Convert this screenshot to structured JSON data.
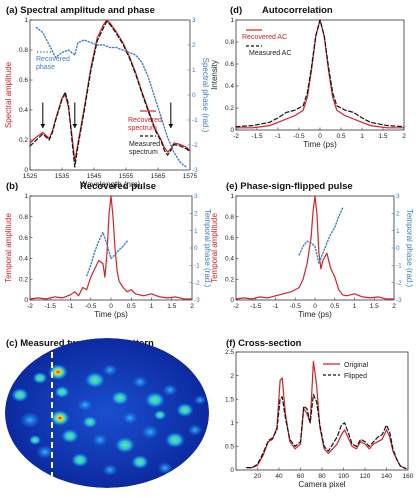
{
  "colors": {
    "red": "#d2232a",
    "blue": "#3f7fc4",
    "black": "#111111",
    "axis": "#333333"
  },
  "chart_data": [
    {
      "panel": "a",
      "type": "line",
      "title": "(a) Spectral amplitude and phase",
      "xlabel": "Wavelength (nm)",
      "ylabel": "Spectral amplitude",
      "ylabel_right": "Spectral phase (rad.)",
      "xlim": [
        1525,
        1575
      ],
      "ylim": [
        0,
        1
      ],
      "ylim_right": [
        -3,
        3
      ],
      "xticks": [
        "1525",
        "1535",
        "1545",
        "1555",
        "1565",
        "1575"
      ],
      "yticks": [
        "0",
        "0.2",
        "0.4",
        "0.6",
        "0.8",
        "1"
      ],
      "yticks_right": [
        "-3",
        "-2",
        "-1",
        "0",
        "1",
        "2",
        "3"
      ],
      "series": [
        {
          "name": "Recovered spectrum",
          "axis": "left",
          "color": "#d2232a",
          "style": "solid",
          "x": [
            1525,
            1527,
            1529,
            1531,
            1532,
            1533,
            1535,
            1536,
            1537,
            1538,
            1539,
            1540,
            1542,
            1544,
            1546,
            1548,
            1549,
            1550,
            1552,
            1554,
            1556,
            1558,
            1560,
            1562,
            1564,
            1566,
            1567,
            1568,
            1569,
            1570,
            1572,
            1574,
            1575
          ],
          "y": [
            0.18,
            0.22,
            0.25,
            0.21,
            0.26,
            0.34,
            0.48,
            0.5,
            0.42,
            0.25,
            0.06,
            0.18,
            0.42,
            0.68,
            0.88,
            0.97,
            1.0,
            0.98,
            0.92,
            0.85,
            0.76,
            0.65,
            0.52,
            0.4,
            0.28,
            0.2,
            0.15,
            0.12,
            0.14,
            0.18,
            0.17,
            0.15,
            0.13
          ]
        },
        {
          "name": "Measured spectrum",
          "axis": "left",
          "color": "#111111",
          "style": "dash",
          "x": [
            1525,
            1527,
            1529,
            1531,
            1532,
            1533,
            1535,
            1536,
            1537,
            1538,
            1539,
            1540,
            1542,
            1544,
            1546,
            1548,
            1549,
            1550,
            1552,
            1554,
            1556,
            1558,
            1560,
            1562,
            1564,
            1566,
            1567,
            1568,
            1569,
            1570,
            1572,
            1574,
            1575
          ],
          "y": [
            0.16,
            0.2,
            0.24,
            0.2,
            0.25,
            0.33,
            0.47,
            0.52,
            0.44,
            0.22,
            0.02,
            0.16,
            0.4,
            0.66,
            0.86,
            0.95,
            0.99,
            0.97,
            0.91,
            0.84,
            0.75,
            0.64,
            0.51,
            0.39,
            0.27,
            0.19,
            0.13,
            0.1,
            0.13,
            0.17,
            0.16,
            0.14,
            0.12
          ]
        },
        {
          "name": "Recovered phase",
          "axis": "right",
          "color": "#3f7fc4",
          "style": "dot",
          "x": [
            1527,
            1529,
            1531,
            1533,
            1535,
            1537,
            1539,
            1540,
            1542,
            1544,
            1546,
            1548,
            1550,
            1552,
            1554,
            1556,
            1558,
            1560,
            1562,
            1564,
            1566,
            1568,
            1570,
            1572,
            1574
          ],
          "y": [
            2.7,
            2.5,
            2.0,
            1.5,
            1.7,
            1.8,
            1.6,
            2.1,
            2.2,
            2.1,
            2.0,
            2.0,
            1.9,
            1.9,
            1.8,
            1.7,
            1.6,
            1.3,
            0.7,
            -0.1,
            -0.9,
            -1.7,
            -2.3,
            -2.7,
            -2.9
          ]
        }
      ],
      "annotations": [
        "arrow at 1529 nm",
        "arrow at 1539 nm",
        "arrow at 1569 nm"
      ]
    },
    {
      "panel": "d",
      "type": "line",
      "title": "(d)",
      "title2": "Autocorrelation",
      "xlabel": "Time (ps)",
      "ylabel": "Intensity",
      "xlim": [
        -2,
        2
      ],
      "ylim": [
        0,
        1
      ],
      "xticks": [
        "-2",
        "-1.5",
        "-1",
        "-0.5",
        "0",
        "0.5",
        "1",
        "1.5",
        "2"
      ],
      "yticks": [
        "0",
        "0.2",
        "0.4",
        "0.6",
        "0.8",
        "1"
      ],
      "series": [
        {
          "name": "Recovered AC",
          "color": "#d2232a",
          "style": "solid",
          "x": [
            -2,
            -1.6,
            -1.2,
            -1.0,
            -0.8,
            -0.6,
            -0.4,
            -0.3,
            -0.2,
            -0.1,
            0,
            0.1,
            0.2,
            0.3,
            0.4,
            0.6,
            0.8,
            1.0,
            1.2,
            1.6,
            2
          ],
          "y": [
            0.02,
            0.02,
            0.04,
            0.07,
            0.1,
            0.13,
            0.18,
            0.3,
            0.55,
            0.85,
            1.0,
            0.85,
            0.55,
            0.3,
            0.18,
            0.13,
            0.1,
            0.07,
            0.04,
            0.02,
            0.02
          ]
        },
        {
          "name": "Measured AC",
          "color": "#111111",
          "style": "dash",
          "x": [
            -2,
            -1.6,
            -1.2,
            -1.0,
            -0.8,
            -0.6,
            -0.4,
            -0.3,
            -0.2,
            -0.1,
            0,
            0.1,
            0.2,
            0.3,
            0.4,
            0.6,
            0.8,
            1.0,
            1.2,
            1.6,
            2
          ],
          "y": [
            0.03,
            0.04,
            0.07,
            0.11,
            0.16,
            0.18,
            0.22,
            0.34,
            0.58,
            0.86,
            1.0,
            0.86,
            0.58,
            0.34,
            0.22,
            0.18,
            0.16,
            0.11,
            0.07,
            0.04,
            0.03
          ]
        }
      ]
    },
    {
      "panel": "b",
      "type": "line",
      "title": "(b)",
      "title2": "Recovered pulse",
      "xlabel": "Time (ps)",
      "ylabel": "Temporal amplitude",
      "ylabel_right": "Temporal phase (rad.)",
      "xlim": [
        -2,
        2
      ],
      "ylim": [
        0,
        1
      ],
      "ylim_right": [
        -3,
        3
      ],
      "xticks": [
        "-2",
        "-1.5",
        "-1",
        "-0.5",
        "0",
        "0.5",
        "1",
        "1.5",
        "2"
      ],
      "yticks": [
        "0",
        "0.2",
        "0.4",
        "0.6",
        "0.8",
        "1"
      ],
      "yticks_right": [
        "-3",
        "-2",
        "-1",
        "0",
        "1",
        "2",
        "3"
      ],
      "series": [
        {
          "name": "amplitude",
          "axis": "left",
          "color": "#d2232a",
          "style": "solid",
          "x": [
            -2,
            -1.8,
            -1.6,
            -1.4,
            -1.2,
            -1.0,
            -0.9,
            -0.8,
            -0.7,
            -0.6,
            -0.5,
            -0.4,
            -0.3,
            -0.2,
            -0.15,
            -0.1,
            -0.05,
            0,
            0.05,
            0.1,
            0.15,
            0.2,
            0.3,
            0.4,
            0.5,
            0.6,
            0.8,
            1.0,
            1.2,
            1.4,
            1.6,
            1.8,
            2
          ],
          "y": [
            0.01,
            0.02,
            0.01,
            0.03,
            0.02,
            0.05,
            0.08,
            0.04,
            0.12,
            0.1,
            0.22,
            0.3,
            0.38,
            0.35,
            0.22,
            0.45,
            0.82,
            1.0,
            0.8,
            0.5,
            0.28,
            0.18,
            0.12,
            0.08,
            0.1,
            0.06,
            0.04,
            0.06,
            0.03,
            0.02,
            0.03,
            0.01,
            0.01
          ]
        },
        {
          "name": "phase",
          "axis": "right",
          "color": "#3f7fc4",
          "style": "dot",
          "x": [
            -0.6,
            -0.5,
            -0.4,
            -0.3,
            -0.2,
            -0.1,
            0,
            0.1,
            0.2,
            0.3,
            0.4
          ],
          "y": [
            -1.6,
            -1.0,
            -0.2,
            0.4,
            0.9,
            0.2,
            -0.6,
            -0.4,
            -0.1,
            0.1,
            0.4
          ]
        }
      ]
    },
    {
      "panel": "e",
      "type": "line",
      "title": "(e) Phase-sign-flipped pulse",
      "xlabel": "Time (ps)",
      "ylabel": "Temporal amplitude",
      "ylabel_right": "Temporal phase (rad.)",
      "xlim": [
        -2,
        2
      ],
      "ylim": [
        0,
        1
      ],
      "ylim_right": [
        -3,
        3
      ],
      "xticks": [
        "-2",
        "-1.5",
        "-1",
        "-0.5",
        "0",
        "0.5",
        "1",
        "1.5",
        "2"
      ],
      "yticks": [
        "0",
        "0.2",
        "0.4",
        "0.6",
        "0.8",
        "1"
      ],
      "yticks_right": [
        "-3",
        "-2",
        "-1",
        "0",
        "1",
        "2",
        "3"
      ],
      "series": [
        {
          "name": "amplitude",
          "axis": "left",
          "color": "#d2232a",
          "style": "solid",
          "x": [
            -2,
            -1.8,
            -1.6,
            -1.4,
            -1.2,
            -1.0,
            -0.8,
            -0.6,
            -0.5,
            -0.4,
            -0.3,
            -0.2,
            -0.1,
            -0.05,
            0,
            0.05,
            0.1,
            0.15,
            0.2,
            0.3,
            0.4,
            0.5,
            0.6,
            0.7,
            0.8,
            1.0,
            1.2,
            1.4,
            1.6,
            1.8,
            2
          ],
          "y": [
            0.01,
            0.02,
            0.01,
            0.03,
            0.02,
            0.04,
            0.06,
            0.08,
            0.1,
            0.12,
            0.2,
            0.35,
            0.6,
            0.85,
            1.0,
            0.82,
            0.45,
            0.3,
            0.38,
            0.45,
            0.3,
            0.22,
            0.1,
            0.05,
            0.04,
            0.06,
            0.03,
            0.02,
            0.03,
            0.01,
            0.01
          ]
        },
        {
          "name": "phase",
          "axis": "right",
          "color": "#3f7fc4",
          "style": "dot",
          "x": [
            -0.4,
            -0.3,
            -0.2,
            -0.1,
            0,
            0.1,
            0.2,
            0.3,
            0.4,
            0.5,
            0.6,
            0.7
          ],
          "y": [
            -0.4,
            0.1,
            0.4,
            0.3,
            0.1,
            -0.9,
            -0.3,
            0.3,
            0.8,
            1.2,
            1.8,
            2.3
          ]
        }
      ]
    },
    {
      "panel": "c",
      "type": "heatmap",
      "title": "(c) Measured two-photon pattern",
      "colormap": [
        "#0a2aa0",
        "#1e78ff",
        "#22d4d8",
        "#a8ee3a",
        "#ffd21e",
        "#ff7a10",
        "#d61a10"
      ],
      "annotations": [
        "dashed vertical line marking the cross-section"
      ]
    },
    {
      "panel": "f",
      "type": "line",
      "title": "(f) Cross-section",
      "xlabel": "Camera pixel",
      "xlim": [
        0,
        160
      ],
      "ylim": [
        0,
        2.5
      ],
      "xticks": [
        "20",
        "40",
        "60",
        "80",
        "100",
        "120",
        "140",
        "160"
      ],
      "yticks": [
        "0",
        "0.5",
        "1",
        "1.5",
        "2",
        "2.5"
      ],
      "series": [
        {
          "name": "Original",
          "color": "#d2232a",
          "style": "solid",
          "x": [
            10,
            15,
            20,
            25,
            30,
            34,
            38,
            41,
            43,
            46,
            50,
            55,
            60,
            63,
            66,
            69,
            72,
            75,
            78,
            82,
            86,
            90,
            94,
            98,
            101,
            105,
            108,
            112,
            116,
            120,
            124,
            128,
            132,
            136,
            140,
            143,
            146,
            150,
            153,
            158
          ],
          "y": [
            0.05,
            0.05,
            0.1,
            0.3,
            0.6,
            0.65,
            0.9,
            1.9,
            1.95,
            1.2,
            0.6,
            0.45,
            0.55,
            1.3,
            1.2,
            1.0,
            2.3,
            1.8,
            0.9,
            0.45,
            0.35,
            0.45,
            0.55,
            0.75,
            0.85,
            0.65,
            0.5,
            0.45,
            0.6,
            0.55,
            0.45,
            0.55,
            0.6,
            0.65,
            0.85,
            0.7,
            0.4,
            0.2,
            0.08,
            0.03
          ]
        },
        {
          "name": "Flipped",
          "color": "#111111",
          "style": "dash",
          "x": [
            10,
            15,
            20,
            25,
            30,
            34,
            38,
            41,
            43,
            46,
            50,
            55,
            60,
            63,
            66,
            69,
            72,
            75,
            78,
            82,
            86,
            90,
            94,
            98,
            101,
            105,
            108,
            112,
            116,
            120,
            124,
            128,
            132,
            136,
            140,
            143,
            146,
            150,
            153,
            158
          ],
          "y": [
            0.05,
            0.05,
            0.12,
            0.35,
            0.62,
            0.68,
            0.85,
            1.5,
            1.55,
            1.1,
            0.65,
            0.5,
            0.6,
            1.35,
            1.3,
            1.0,
            1.6,
            1.45,
            0.95,
            0.5,
            0.4,
            0.55,
            0.7,
            0.95,
            1.0,
            0.75,
            0.55,
            0.5,
            0.65,
            0.6,
            0.5,
            0.6,
            0.7,
            0.75,
            0.95,
            0.8,
            0.45,
            0.2,
            0.08,
            0.03
          ]
        }
      ]
    }
  ]
}
